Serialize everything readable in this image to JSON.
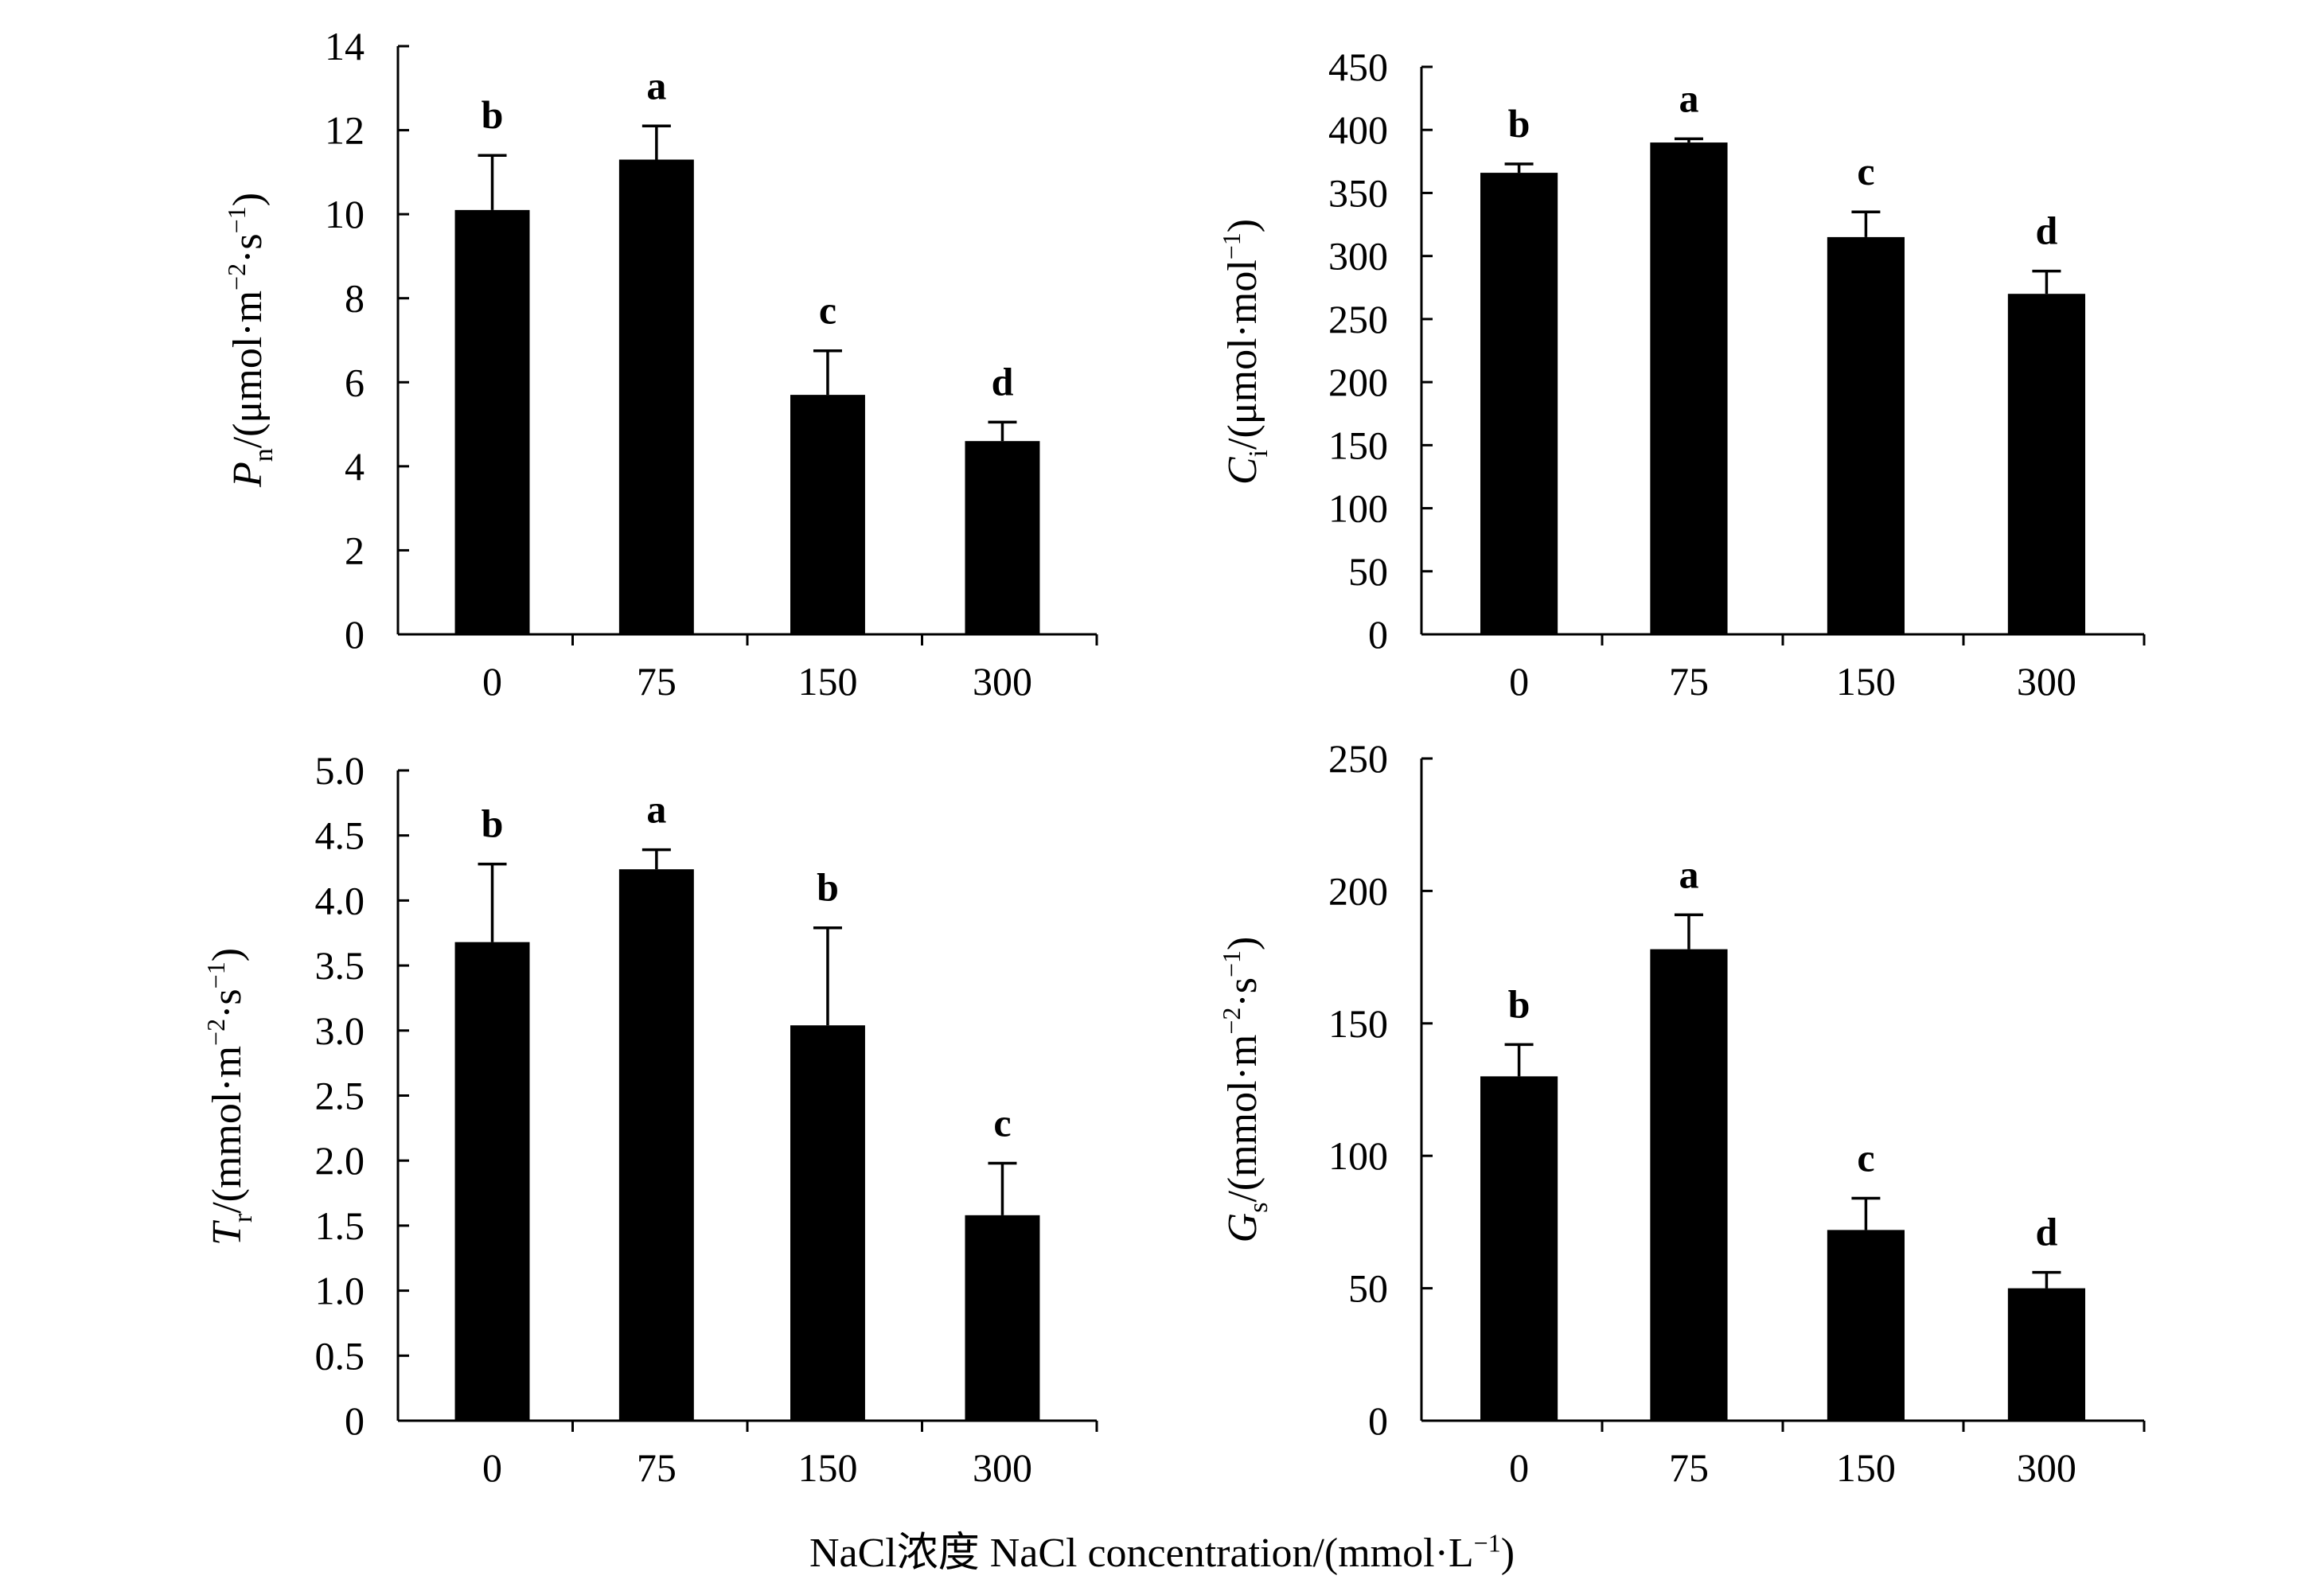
{
  "x_axis_title": {
    "prefix": "NaCl浓度  NaCl concentration/(mmol·L",
    "sup": "−1",
    "suffix": ")"
  },
  "chart_data": [
    {
      "id": "pn",
      "type": "bar",
      "categories": [
        "0",
        "75",
        "150",
        "300"
      ],
      "values": [
        10.1,
        11.3,
        5.7,
        4.6
      ],
      "errors": [
        1.3,
        0.8,
        1.05,
        0.45
      ],
      "letters": [
        "b",
        "a",
        "c",
        "d"
      ],
      "ylim": [
        0,
        14
      ],
      "yticks": [
        0,
        2,
        4,
        6,
        8,
        10,
        12,
        14
      ],
      "ylabel": {
        "symbol": "P",
        "sub": "n",
        "unit_a": "/(μmol·m",
        "sup_a": "−2",
        "unit_b": "·s",
        "sup_b": "−1",
        "unit_c": ")"
      }
    },
    {
      "id": "ci",
      "type": "bar",
      "categories": [
        "0",
        "75",
        "150",
        "300"
      ],
      "values": [
        366,
        390,
        315,
        270
      ],
      "errors": [
        7,
        3,
        20,
        18
      ],
      "letters": [
        "b",
        "a",
        "c",
        "d"
      ],
      "ylim": [
        0,
        450
      ],
      "yticks": [
        0,
        50,
        100,
        150,
        200,
        250,
        300,
        350,
        400,
        450
      ],
      "ylabel": {
        "symbol": "C",
        "sub": "i",
        "unit_a": "/(μmol·mol",
        "sup_a": "−1",
        "unit_b": "",
        "sup_b": "",
        "unit_c": ")"
      }
    },
    {
      "id": "tr",
      "type": "bar",
      "categories": [
        "0",
        "75",
        "150",
        "300"
      ],
      "values": [
        3.68,
        4.24,
        3.04,
        1.58
      ],
      "errors": [
        0.6,
        0.15,
        0.75,
        0.4
      ],
      "letters": [
        "b",
        "a",
        "b",
        "c"
      ],
      "ylim": [
        0,
        5
      ],
      "yticks": [
        "0",
        "0.5",
        "1.0",
        "1.5",
        "2.0",
        "2.5",
        "3.0",
        "3.5",
        "4.0",
        "4.5",
        "5.0"
      ],
      "ylabel": {
        "symbol": "T",
        "sub": "r",
        "unit_a": "/(mmol·m",
        "sup_a": "−2",
        "unit_b": "·s",
        "sup_b": "−1",
        "unit_c": ")"
      }
    },
    {
      "id": "gs",
      "type": "bar",
      "categories": [
        "0",
        "75",
        "150",
        "300"
      ],
      "values": [
        130,
        178,
        72,
        50
      ],
      "errors": [
        12,
        13,
        12,
        6
      ],
      "letters": [
        "b",
        "a",
        "c",
        "d"
      ],
      "ylim": [
        0,
        250
      ],
      "yticks": [
        0,
        50,
        100,
        150,
        200,
        250
      ],
      "ylabel": {
        "symbol": "G",
        "sub": "s",
        "unit_a": "/(mmol·m",
        "sup_a": "−2",
        "unit_b": "·s",
        "sup_b": "−1",
        "unit_c": ")"
      }
    }
  ]
}
